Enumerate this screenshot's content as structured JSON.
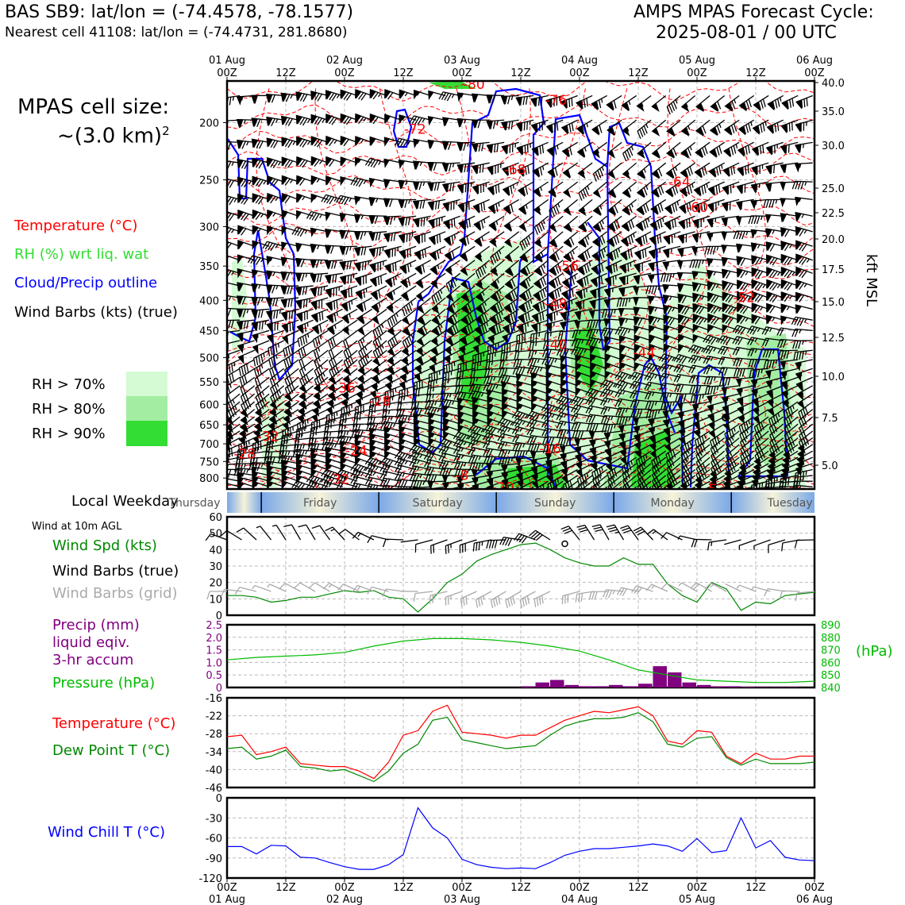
{
  "header": {
    "station_line": "BAS SB9: lat/lon = (-74.4578, -78.1577)",
    "cell_line": "Nearest cell 41108: lat/lon = (-74.4731, 281.8680)",
    "cycle_title": "AMPS MPAS Forecast Cycle:",
    "cycle_time": "2025-08-01 / 00 UTC"
  },
  "cell_size": {
    "label": "MPAS cell size:",
    "value": "~(3.0 km)",
    "exponent": "2"
  },
  "legend": {
    "temperature": "Temperature (°C)",
    "rh": "RH (%) wrt liq. wat",
    "cloud": "Cloud/Precip outline",
    "wind": "Wind Barbs (kts) (true)",
    "rh70": "RH > 70%",
    "rh80": "RH > 80%",
    "rh90": "RH > 90%",
    "rh70_color": "#d4fbd4",
    "rh80_color": "#a3eda3",
    "rh90_color": "#33dd33"
  },
  "colors": {
    "temperature": "#ff0000",
    "rh_text": "#33dd33",
    "cloud": "#0000ff",
    "wind_speed": "#008800",
    "grid_barb": "#aaaaaa",
    "precip": "#800080",
    "pressure": "#00bb00",
    "dewpoint": "#008800",
    "windchill": "#0000ff"
  },
  "time_axis": {
    "top_labels": [
      {
        "day": "01 Aug",
        "hour": "00Z"
      },
      {
        "day": "",
        "hour": "12Z"
      },
      {
        "day": "02 Aug",
        "hour": "00Z"
      },
      {
        "day": "",
        "hour": "12Z"
      },
      {
        "day": "03 Aug",
        "hour": "00Z"
      },
      {
        "day": "",
        "hour": "12Z"
      },
      {
        "day": "04 Aug",
        "hour": "00Z"
      },
      {
        "day": "",
        "hour": "12Z"
      },
      {
        "day": "05 Aug",
        "hour": "00Z"
      },
      {
        "day": "",
        "hour": "12Z"
      },
      {
        "day": "06 Aug",
        "hour": "00Z"
      }
    ]
  },
  "cross_section": {
    "pressure_ticks": [
      "200",
      "250",
      "300",
      "350",
      "400",
      "450",
      "500",
      "550",
      "600",
      "650",
      "700",
      "750",
      "800"
    ],
    "kft_ticks": [
      "40.0",
      "35.0",
      "30.0",
      "25.0",
      "22.5",
      "20.0",
      "17.5",
      "15.0",
      "12.5",
      "10.0",
      "7.5",
      "5.0"
    ],
    "kft_label": "kft MSL",
    "temp_labels": [
      {
        "text": "-80",
        "t": 42,
        "p": 172
      },
      {
        "text": "-76",
        "t": 56,
        "p": 183
      },
      {
        "text": "-72",
        "t": 32,
        "p": 205
      },
      {
        "text": "-72",
        "t": 73,
        "p": 161
      },
      {
        "text": "-72",
        "t": 92,
        "p": 157
      },
      {
        "text": "-68",
        "t": 49,
        "p": 240
      },
      {
        "text": "-64",
        "t": 77,
        "p": 252
      },
      {
        "text": "-60",
        "t": 80,
        "p": 278
      },
      {
        "text": "-56",
        "t": 58,
        "p": 350
      },
      {
        "text": "-52",
        "t": 88,
        "p": 395
      },
      {
        "text": "-48",
        "t": 56,
        "p": 405
      },
      {
        "text": "-44",
        "t": 71,
        "p": 490
      },
      {
        "text": "-40",
        "t": 56,
        "p": 475
      },
      {
        "text": "-36",
        "t": 20,
        "p": 563
      },
      {
        "text": "-32",
        "t": 7,
        "p": 680
      },
      {
        "text": "-28",
        "t": 26,
        "p": 592
      },
      {
        "text": "-28",
        "t": 3,
        "p": 728
      },
      {
        "text": "-24",
        "t": 22,
        "p": 719
      },
      {
        "text": "-16",
        "t": 55,
        "p": 713
      },
      {
        "text": "-8",
        "t": 40,
        "p": 791
      },
      {
        "text": "-20",
        "t": 47,
        "p": 829
      },
      {
        "text": "-32",
        "t": 19,
        "p": 803
      },
      {
        "text": "-52",
        "t": 83,
        "p": 835
      }
    ],
    "weekdays": [
      "Thursday",
      "Friday",
      "Saturday",
      "Sunday",
      "Monday",
      "Tuesday"
    ],
    "weekday_label": "Local Weekday"
  },
  "wind_panel": {
    "agl_label": "Wind at 10m AGL",
    "speed_label": "Wind Spd (kts)",
    "barb_true_label": "Wind Barbs (true)",
    "barb_grid_label": "Wind Barbs (grid)",
    "y_ticks": [
      "0",
      "10",
      "20",
      "30",
      "40",
      "50",
      "60"
    ]
  },
  "precip_panel": {
    "precip_label_1": "Precip (mm)",
    "precip_label_2": "liquid eqiv.",
    "precip_label_3": "3-hr accum",
    "pressure_label": "Pressure (hPa)",
    "left_ticks": [
      "0",
      "0.5",
      "1.0",
      "1.5",
      "2.0",
      "2.5"
    ],
    "right_ticks": [
      "840",
      "850",
      "860",
      "870",
      "880",
      "890"
    ],
    "right_unit": "(hPa)"
  },
  "temp_panel": {
    "temp_label": "Temperature (°C)",
    "dew_label": "Dew Point T (°C)",
    "y_ticks": [
      "-46",
      "-40",
      "-34",
      "-28",
      "-22",
      "-16"
    ]
  },
  "chill_panel": {
    "label": "Wind Chill T (°C)",
    "y_ticks": [
      "-120",
      "-90",
      "-60",
      "-30",
      "0"
    ]
  },
  "chart_data": [
    {
      "type": "line",
      "title": "Wind at 10m AGL",
      "ylabel": "Wind Spd (kts)",
      "ylim": [
        0,
        60
      ],
      "x_hours": [
        0,
        3,
        6,
        9,
        12,
        15,
        18,
        21,
        24,
        27,
        30,
        33,
        36,
        39,
        42,
        45,
        48,
        51,
        54,
        57,
        60,
        63,
        66,
        69,
        72,
        75,
        78,
        81,
        84,
        87,
        90,
        93,
        96,
        99,
        102,
        105,
        108,
        111,
        114,
        117,
        120
      ],
      "series": [
        {
          "name": "Wind Spd (kts)",
          "values": [
            12,
            12,
            11,
            8,
            9,
            11,
            11,
            13,
            15,
            14,
            15,
            11,
            10,
            2,
            10,
            20,
            25,
            33,
            37,
            40,
            43,
            44,
            40,
            35,
            32,
            30,
            30,
            35,
            31,
            31,
            19,
            12,
            8,
            20,
            16,
            3,
            8,
            7,
            12,
            13,
            14
          ]
        }
      ]
    },
    {
      "type": "bar",
      "title": "Precip (mm) liquid eqiv. 3-hr accum",
      "ylim": [
        0,
        2.5
      ],
      "x_hours": [
        0,
        3,
        6,
        9,
        12,
        15,
        18,
        21,
        24,
        27,
        30,
        33,
        36,
        39,
        42,
        45,
        48,
        51,
        54,
        57,
        60,
        63,
        66,
        69,
        72,
        75,
        78,
        81,
        84,
        87,
        90,
        93,
        96,
        99,
        102,
        105,
        108,
        111,
        114,
        117
      ],
      "values": [
        0,
        0,
        0,
        0,
        0,
        0,
        0,
        0,
        0,
        0,
        0,
        0,
        0,
        0,
        0,
        0,
        0,
        0,
        0,
        0,
        0.05,
        0.2,
        0.3,
        0.1,
        0.05,
        0.05,
        0.1,
        0.05,
        0.15,
        0.85,
        0.6,
        0.2,
        0.1,
        0.05,
        0.05,
        0.03,
        0.02,
        0.02,
        0.02,
        0
      ]
    },
    {
      "type": "line",
      "title": "Pressure (hPa)",
      "ylim": [
        840,
        890
      ],
      "x_hours": [
        0,
        6,
        12,
        18,
        24,
        30,
        36,
        42,
        48,
        54,
        60,
        66,
        72,
        78,
        84,
        90,
        96,
        102,
        108,
        114,
        120
      ],
      "series": [
        {
          "name": "Pressure (hPa)",
          "values": [
            862,
            864,
            865,
            866,
            868,
            873,
            877,
            879,
            879,
            878,
            876,
            873,
            869,
            862,
            854,
            850,
            846,
            845,
            844,
            844,
            845
          ]
        }
      ]
    },
    {
      "type": "line",
      "ylim": [
        -46,
        -16
      ],
      "x_hours": [
        0,
        3,
        6,
        9,
        12,
        15,
        18,
        21,
        24,
        27,
        30,
        33,
        36,
        39,
        42,
        45,
        48,
        51,
        54,
        57,
        60,
        63,
        66,
        69,
        72,
        75,
        78,
        81,
        84,
        87,
        90,
        93,
        96,
        99,
        102,
        105,
        108,
        111,
        114,
        117,
        120
      ],
      "series": [
        {
          "name": "Temperature (°C)",
          "values": [
            -29,
            -28.5,
            -35,
            -34,
            -32.5,
            -38,
            -38.5,
            -39,
            -39,
            -40.5,
            -43,
            -37.5,
            -28.5,
            -27,
            -20.5,
            -18.5,
            -27.5,
            -28,
            -28.5,
            -29.5,
            -28.5,
            -28.5,
            -26,
            -23.5,
            -22,
            -20.5,
            -21,
            -20,
            -19,
            -22,
            -30.5,
            -31.5,
            -27,
            -27.5,
            -35.5,
            -38,
            -34.5,
            -36.5,
            -36.5,
            -35.5,
            -35.5
          ]
        },
        {
          "name": "Dew Point T (°C)",
          "values": [
            -33,
            -32.5,
            -36.5,
            -35.5,
            -33.5,
            -39,
            -39.5,
            -40.5,
            -40,
            -42,
            -44,
            -40.5,
            -34.5,
            -31.5,
            -23.5,
            -22.5,
            -30,
            -31,
            -32,
            -33,
            -32.5,
            -32,
            -28.5,
            -25.5,
            -24,
            -23,
            -23,
            -22.5,
            -21,
            -24,
            -31.5,
            -32.5,
            -29.5,
            -29,
            -36,
            -38.5,
            -36.5,
            -38,
            -38,
            -38,
            -37.5
          ]
        }
      ]
    },
    {
      "type": "line",
      "ylabel": "Wind Chill T (°C)",
      "ylim": [
        -120,
        0
      ],
      "x_hours": [
        0,
        3,
        6,
        9,
        12,
        15,
        18,
        21,
        24,
        27,
        30,
        33,
        36,
        39,
        42,
        45,
        48,
        51,
        54,
        57,
        60,
        63,
        66,
        69,
        72,
        75,
        78,
        81,
        84,
        87,
        90,
        93,
        96,
        99,
        102,
        105,
        108,
        111,
        114,
        117,
        120
      ],
      "series": [
        {
          "name": "Wind Chill T (°C)",
          "values": [
            -73,
            -73,
            -84,
            -71,
            -72,
            -89,
            -90,
            -97,
            -103,
            -107,
            -107,
            -100,
            -85,
            -15,
            -45,
            -60,
            -92,
            -100,
            -104,
            -106,
            -105,
            -106,
            -97,
            -86,
            -80,
            -76,
            -76,
            -74,
            -72,
            -69,
            -72,
            -80,
            -61,
            -82,
            -79,
            -30,
            -75,
            -64,
            -89,
            -93,
            -94
          ]
        }
      ]
    }
  ]
}
